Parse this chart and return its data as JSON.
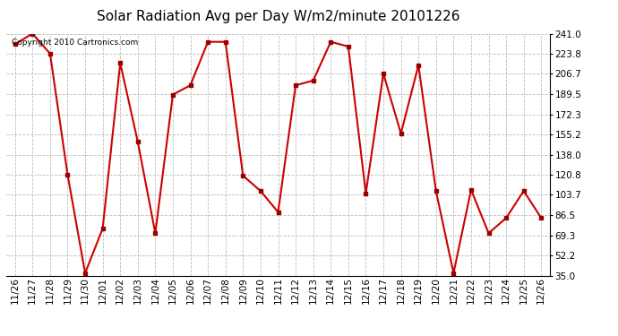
{
  "title": "Solar Radiation Avg per Day W/m2/minute 20101226",
  "copyright": "Copyright 2010 Cartronics.com",
  "labels": [
    "11/26",
    "11/27",
    "11/28",
    "11/29",
    "11/30",
    "12/01",
    "12/02",
    "12/03",
    "12/04",
    "12/05",
    "12/06",
    "12/07",
    "12/08",
    "12/09",
    "12/10",
    "12/11",
    "12/12",
    "12/13",
    "12/14",
    "12/15",
    "12/16",
    "12/17",
    "12/18",
    "12/19",
    "12/20",
    "12/21",
    "12/22",
    "12/23",
    "12/24",
    "12/25",
    "12/26"
  ],
  "values": [
    232,
    241,
    224,
    121,
    37,
    75,
    216,
    149,
    71,
    189,
    197,
    234,
    234,
    120,
    107,
    89,
    197,
    201,
    234,
    230,
    105,
    207,
    156,
    214,
    107,
    37,
    108,
    71,
    84,
    107,
    84
  ],
  "line_color": "#cc0000",
  "marker_color": "#990000",
  "bg_color": "#ffffff",
  "grid_color": "#bbbbbb",
  "ylabel_values": [
    35.0,
    52.2,
    69.3,
    86.5,
    103.7,
    120.8,
    138.0,
    155.2,
    172.3,
    189.5,
    206.7,
    223.8,
    241.0
  ],
  "ymin": 35.0,
  "ymax": 241.0,
  "title_fontsize": 11,
  "tick_fontsize": 7.5,
  "copyright_fontsize": 6.5
}
